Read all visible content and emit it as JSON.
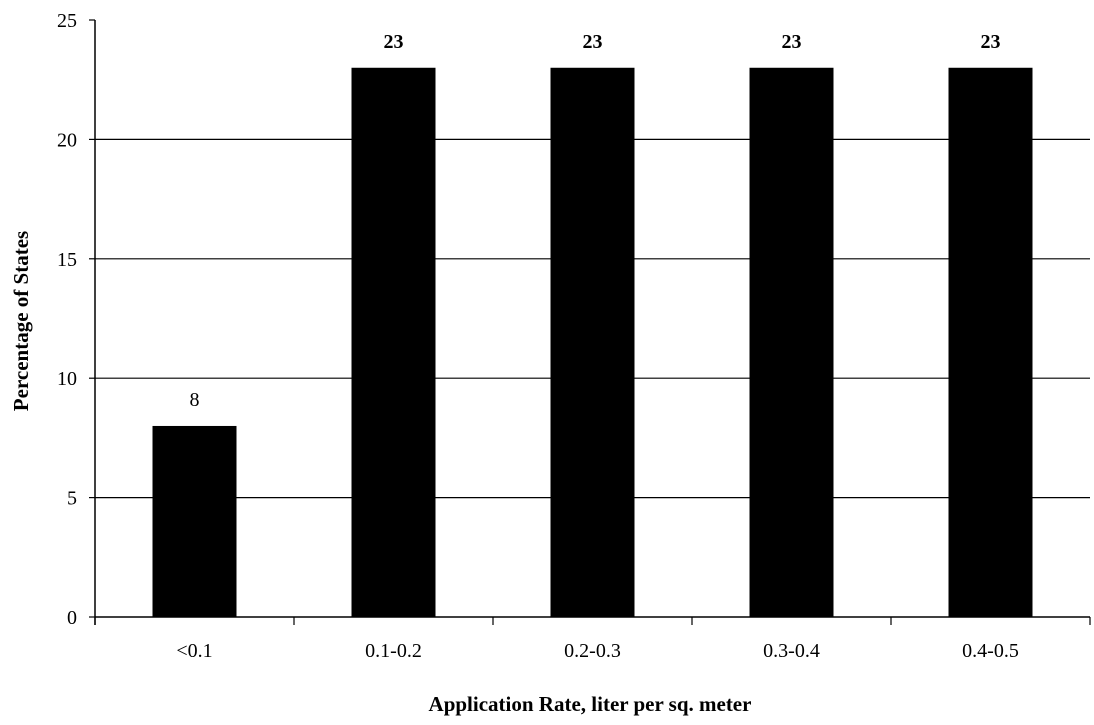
{
  "chart_data": {
    "type": "bar",
    "title": "",
    "xlabel": "Application Rate, liter per sq. meter",
    "ylabel": "Percentage of States",
    "categories": [
      "<0.1",
      "0.1-0.2",
      "0.2-0.3",
      "0.3-0.4",
      "0.4-0.5"
    ],
    "values": [
      8,
      23,
      23,
      23,
      23
    ],
    "data_labels": [
      "8",
      "23",
      "23",
      "23",
      "23"
    ],
    "ylim": [
      0,
      25
    ],
    "yticks": [
      0,
      5,
      10,
      15,
      20,
      25
    ],
    "grid": true,
    "legend": "none",
    "bar_color": "#000000"
  }
}
